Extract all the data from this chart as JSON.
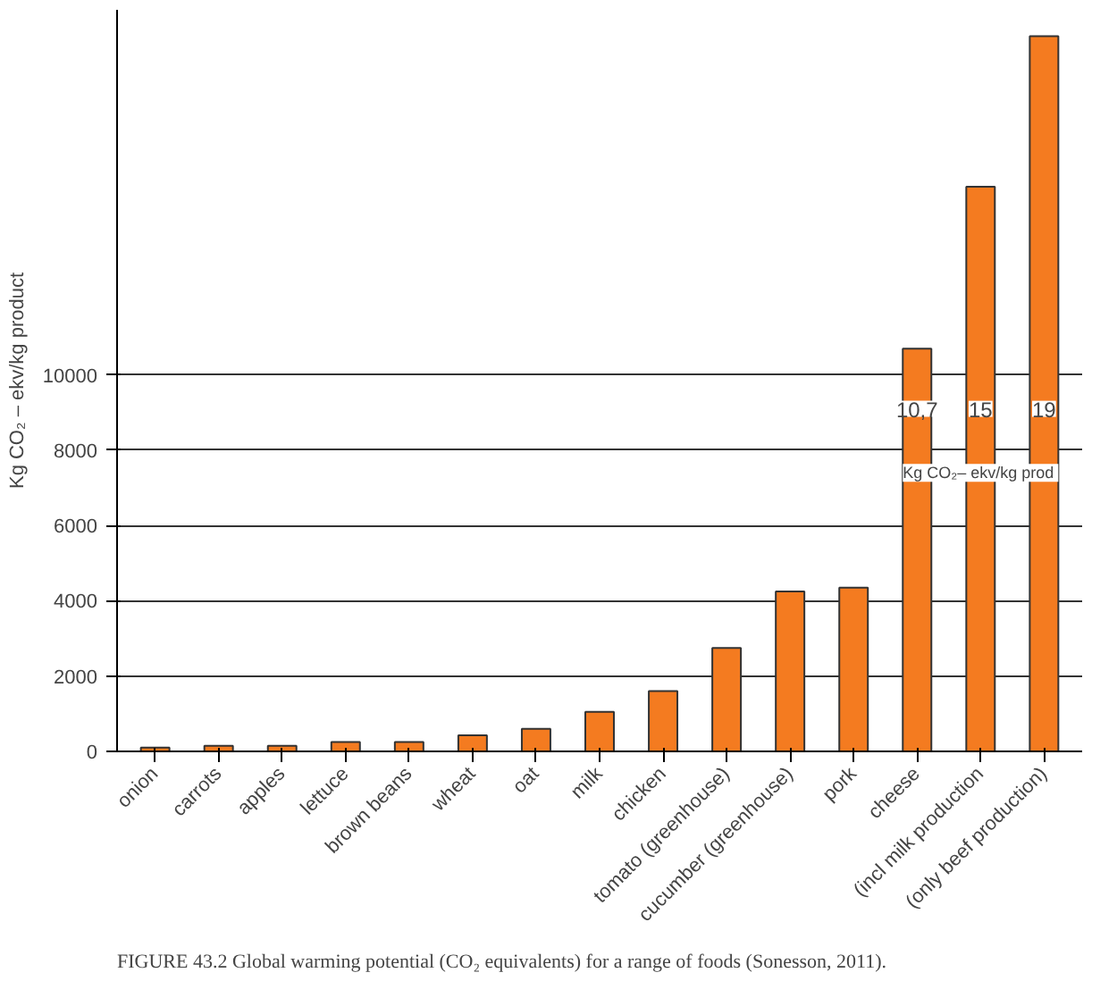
{
  "chart_data": {
    "type": "bar",
    "categories": [
      "onion",
      "carrots",
      "apples",
      "lettuce",
      "brown beans",
      "wheat",
      "oat",
      "milk",
      "chicken",
      "tomato (greenhouse)",
      "cucumber (greenhouse)",
      "pork",
      "cheese",
      "(incl milk production",
      "(only beef production)"
    ],
    "values": [
      100,
      150,
      150,
      250,
      250,
      430,
      600,
      1050,
      1600,
      2750,
      4250,
      4350,
      10700,
      15000,
      19000
    ],
    "color": "#f47b20",
    "ylabel": "Kg CO₂ – ekv/kg product",
    "ylim": [
      0,
      19700
    ],
    "yticks": [
      0,
      2000,
      4000,
      6000,
      8000,
      10000
    ],
    "grid": "y",
    "annotations": [
      {
        "text": "10,7",
        "x": "cheese",
        "y": 9100
      },
      {
        "text": "15",
        "x": "(incl milk production",
        "y": 9100
      },
      {
        "text": "19",
        "x": "(only beef production)",
        "y": 9100
      },
      "Kg CO₂– ekv/kg  prod",
      "FIGURE 43.2  Global warming potential (CO₂ equivalents) for a range of foods (Sonesson, 2011)."
    ]
  }
}
